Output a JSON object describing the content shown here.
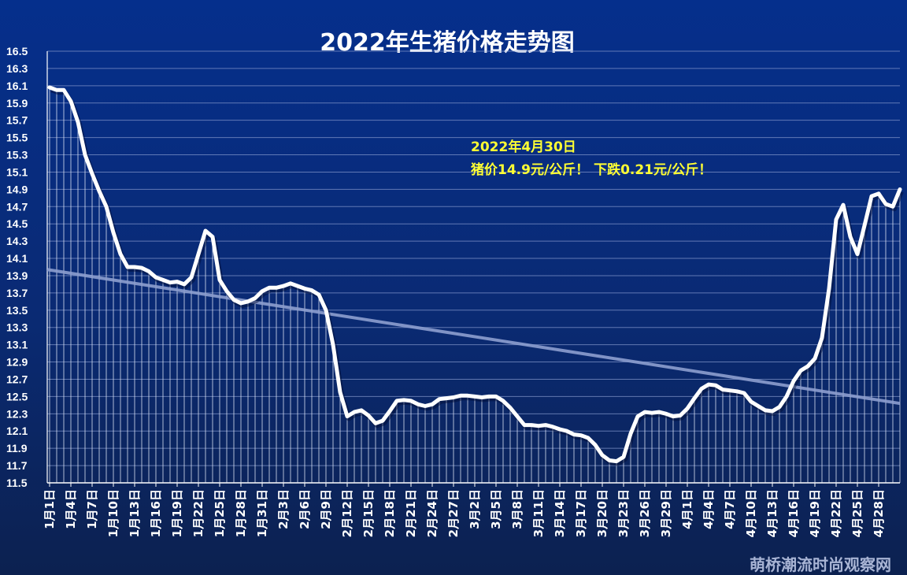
{
  "chart_data": {
    "type": "area",
    "title": "2022年生猪价格走势图",
    "ylim": [
      11.5,
      16.5
    ],
    "yticks": [
      11.5,
      11.7,
      11.9,
      12.1,
      12.3,
      12.5,
      12.7,
      12.9,
      13.1,
      13.3,
      13.5,
      13.7,
      13.9,
      14.1,
      14.3,
      14.5,
      14.7,
      14.9,
      15.1,
      15.3,
      15.5,
      15.7,
      15.9,
      16.1,
      16.3,
      16.5
    ],
    "xtick_labels": [
      "1月1日",
      "1月4日",
      "1月7日",
      "1月10日",
      "1月13日",
      "1月16日",
      "1月19日",
      "1月22日",
      "1月25日",
      "1月28日",
      "1月31日",
      "2月3日",
      "2月6日",
      "2月9日",
      "2月12日",
      "2月15日",
      "2月18日",
      "2月21日",
      "2月24日",
      "2月27日",
      "3月2日",
      "3月5日",
      "3月8日",
      "3月11日",
      "3月14日",
      "3月17日",
      "3月20日",
      "3月23日",
      "3月26日",
      "3月29日",
      "4月1日",
      "4月4日",
      "4月7日",
      "4月10日",
      "4月13日",
      "4月16日",
      "4月19日",
      "4月22日",
      "4月25日",
      "4月28日"
    ],
    "grid": true,
    "series": [
      {
        "values": [
          16.08,
          16.05,
          16.05,
          15.92,
          15.68,
          15.3,
          15.08,
          14.88,
          14.7,
          14.4,
          14.15,
          14.0,
          14.0,
          13.99,
          13.95,
          13.88,
          13.85,
          13.82,
          13.83,
          13.8,
          13.88,
          14.15,
          14.42,
          14.35,
          13.85,
          13.72,
          13.62,
          13.58,
          13.6,
          13.64,
          13.72,
          13.76,
          13.76,
          13.78,
          13.81,
          13.78,
          13.75,
          13.73,
          13.68,
          13.5,
          13.1,
          12.55,
          12.27,
          12.32,
          12.34,
          12.28,
          12.19,
          12.22,
          12.33,
          12.45,
          12.46,
          12.45,
          12.41,
          12.39,
          12.41,
          12.47,
          12.48,
          12.49,
          12.51,
          12.51,
          12.5,
          12.49,
          12.5,
          12.5,
          12.45,
          12.37,
          12.27,
          12.17,
          12.17,
          12.16,
          12.17,
          12.15,
          12.12,
          12.1,
          12.06,
          12.05,
          12.02,
          11.94,
          11.82,
          11.76,
          11.75,
          11.8,
          12.07,
          12.27,
          12.32,
          12.31,
          12.32,
          12.3,
          12.27,
          12.28,
          12.36,
          12.48,
          12.59,
          12.64,
          12.63,
          12.58,
          12.57,
          12.56,
          12.54,
          12.44,
          12.39,
          12.34,
          12.33,
          12.38,
          12.5,
          12.68,
          12.8,
          12.85,
          12.94,
          13.18,
          13.75,
          14.55,
          14.72,
          14.35,
          14.15,
          14.48,
          14.82,
          14.85,
          14.73,
          14.7,
          14.9
        ]
      },
      {
        "values": [
          13.97,
          12.42
        ]
      }
    ],
    "annotation": [
      "2022年4月30日",
      "猪价14.9元/公斤！ 下跌0.21元/公斤！"
    ],
    "colors": {
      "line": "#ffffff",
      "trend": "#8d9fcf",
      "annotation": "#ffff33"
    }
  },
  "watermark": "萌桥潮流时尚观察网"
}
